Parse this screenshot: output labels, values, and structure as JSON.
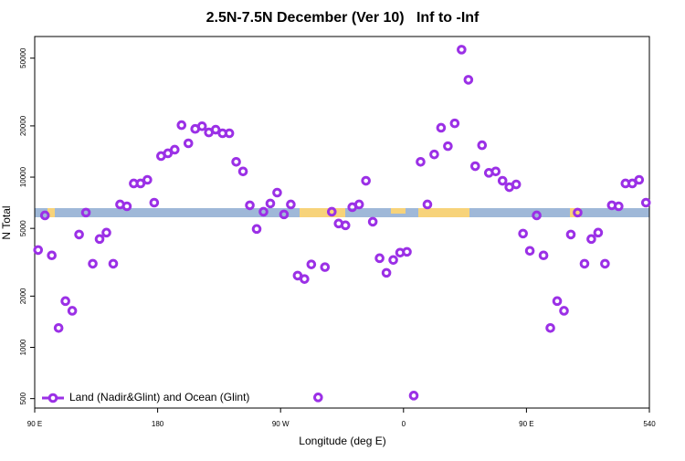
{
  "chart_data": {
    "type": "scatter",
    "title": "2.5N-7.5N December (Ver 10)   Inf to -Inf",
    "x_label": "Longitude (deg E)",
    "y_label": "N Total",
    "log_y": true,
    "legend_position": "bottom-left",
    "xlim": [
      90,
      540
    ],
    "ylim": [
      440,
      67000
    ],
    "xticks": [
      {
        "value": 90,
        "label": "90 E"
      },
      180,
      {
        "value": 270,
        "label": "90 W"
      },
      {
        "value": 360,
        "label": "0"
      },
      {
        "value": 450,
        "label": "90 E"
      },
      540
    ],
    "yticks": [
      500,
      1000,
      2000,
      5000,
      10000,
      20000,
      50000
    ],
    "series": [
      {
        "name": "Land (Nadir&Glint) and Ocean (Glint)",
        "color": "#9b30e6",
        "x": [
          92.5,
          97.5,
          102.5,
          107.5,
          112.5,
          117.5,
          122.5,
          127.5,
          132.5,
          137.5,
          142.5,
          147.5,
          152.5,
          157.5,
          162.5,
          167.5,
          172.5,
          177.5,
          182.5,
          187.5,
          192.5,
          197.5,
          202.5,
          207.5,
          212.5,
          217.5,
          222.5,
          227.5,
          232.5,
          237.5,
          242.5,
          247.5,
          252.5,
          257.5,
          262.5,
          267.5,
          272.5,
          277.5,
          282.5,
          287.5,
          292.5,
          297.5,
          302.5,
          307.5,
          312.5,
          317.5,
          322.5,
          327.5,
          332.5,
          337.5,
          342.5,
          347.5,
          352.5,
          357.5,
          362.5,
          367.5,
          372.5,
          377.5,
          382.5,
          387.5,
          392.5,
          397.5,
          402.5,
          407.5,
          412.5,
          417.5,
          422.5,
          427.5,
          432.5,
          437.5,
          442.5,
          447.5,
          452.5,
          457.5,
          462.5,
          467.5,
          472.5,
          477.5,
          482.5,
          487.5,
          492.5,
          497.5,
          502.5,
          507.5,
          512.5,
          517.5,
          522.5,
          527.5,
          532.5,
          537.5
        ],
        "values": [
          3730,
          5960,
          3470,
          1300,
          1870,
          1640,
          4600,
          6190,
          3100,
          4330,
          4720,
          3100,
          6910,
          6740,
          9180,
          9180,
          9640,
          7080,
          13300,
          13800,
          14500,
          20200,
          15800,
          19200,
          19900,
          18300,
          19000,
          18100,
          18100,
          12300,
          10800,
          6830,
          4960,
          6260,
          7000,
          8110,
          6040,
          6910,
          2640,
          2520,
          3070,
          508,
          2960,
          6260,
          5340,
          5210,
          6660,
          6910,
          9520,
          5470,
          3340,
          2740,
          3260,
          3600,
          3640,
          521,
          12300,
          6910,
          13600,
          19500,
          15200,
          20700,
          56100,
          37300,
          11600,
          15400,
          10600,
          10800,
          9520,
          8730,
          9060,
          4660,
          3690,
          5960,
          3470,
          1300,
          1870,
          1640,
          4600,
          6190,
          3100,
          4330,
          4720,
          3100,
          6830,
          6740,
          9180,
          9180,
          9640,
          7080
        ]
      }
    ]
  }
}
